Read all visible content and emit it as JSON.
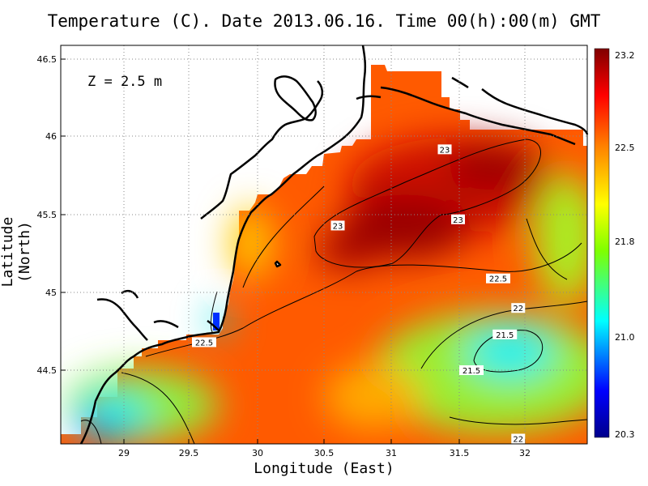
{
  "title": "Temperature (C). Date 2013.06.16. Time 00(h):00(m) GMT",
  "depth_label": "Z = 2.5 m",
  "xlabel": "Longitude (East)",
  "ylabel": "Latitude (North)",
  "chart_data": {
    "type": "heatmap",
    "variable": "Temperature (C)",
    "x_ticks": [
      "29",
      "29.5",
      "30",
      "30.5",
      "31",
      "31.5",
      "32"
    ],
    "y_ticks": [
      "44.5",
      "45",
      "45.5",
      "46",
      "46.5"
    ],
    "xlim": [
      28.55,
      32.5
    ],
    "ylim": [
      44.45,
      46.55
    ],
    "grid": true,
    "colorbar": {
      "ticks": [
        "23.2",
        "22.5",
        "21.8",
        "21.0",
        "20.3"
      ],
      "range": [
        20.3,
        23.2
      ],
      "colors": [
        "#00008b",
        "#0000ff",
        "#00ffff",
        "#7fff00",
        "#ffff00",
        "#ff8000",
        "#ff0000",
        "#800000"
      ]
    },
    "contour_labels": [
      {
        "text": "23",
        "lon": 31.4,
        "lat": 45.92
      },
      {
        "text": "23",
        "lon": 30.6,
        "lat": 45.43
      },
      {
        "text": "23",
        "lon": 31.5,
        "lat": 45.47
      },
      {
        "text": "22.5",
        "lon": 31.8,
        "lat": 45.09
      },
      {
        "text": "22.5",
        "lon": 29.6,
        "lat": 44.68
      },
      {
        "text": "22",
        "lon": 31.95,
        "lat": 44.9
      },
      {
        "text": "21.5",
        "lon": 31.85,
        "lat": 44.73
      },
      {
        "text": "21.5",
        "lon": 31.6,
        "lat": 44.5
      },
      {
        "text": "22",
        "lon": 31.95,
        "lat": 44.06
      }
    ]
  }
}
